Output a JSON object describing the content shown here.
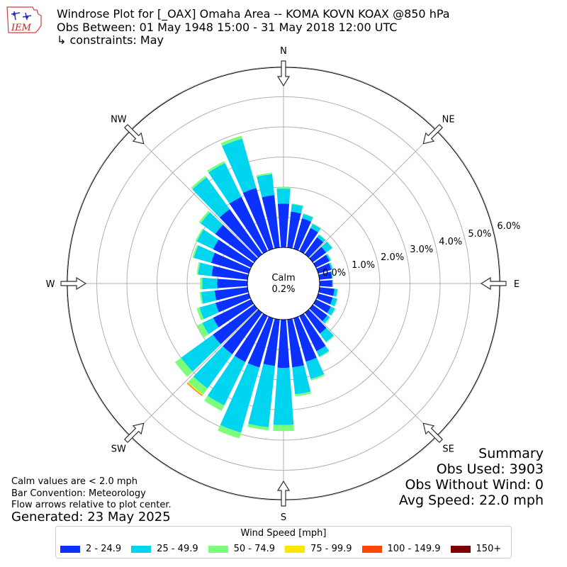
{
  "header": {
    "logo_text": "IEM",
    "title_line1": "Windrose Plot for [_OAX] Omaha Area -- KOMA KOVN KOAX @850 hPa",
    "title_line2": "Obs Between: 01 May 1948 15:00 - 31 May 2018 12:00 UTC",
    "title_line3": "↳ constraints: May"
  },
  "notes": {
    "calm_note": "Calm values are < 2.0 mph",
    "bar_convention": "Bar Convention: Meteorology",
    "flow_note": "Flow arrows relative to plot center.",
    "generated": "Generated: 23 May 2025"
  },
  "summary": {
    "title": "Summary",
    "obs_used": "Obs Used: 3903",
    "obs_without_wind": "Obs Without Wind: 0",
    "avg_speed": "Avg Speed: 22.0 mph"
  },
  "legend": {
    "title": "Wind Speed [mph]",
    "items": [
      {
        "label": "2 - 24.9",
        "color": "#0a31ff"
      },
      {
        "label": "25 - 49.9",
        "color": "#00d5f0"
      },
      {
        "label": "50 - 74.9",
        "color": "#7cff7a"
      },
      {
        "label": "75 - 99.9",
        "color": "#ffe500"
      },
      {
        "label": "100 - 149.9",
        "color": "#ff4600"
      },
      {
        "label": "150+",
        "color": "#7f0000"
      }
    ]
  },
  "chart_data": {
    "type": "windrose",
    "units": "%",
    "calm_label": "Calm",
    "calm_value": "0.2%",
    "radial_ticks": [
      "0.0%",
      "1.0%",
      "2.0%",
      "3.0%",
      "4.0%",
      "5.0%",
      "6.0%"
    ],
    "rmax": 6.0,
    "compass": [
      {
        "label": "N",
        "deg": 0
      },
      {
        "label": "NE",
        "deg": 45
      },
      {
        "label": "E",
        "deg": 90
      },
      {
        "label": "SE",
        "deg": 135
      },
      {
        "label": "S",
        "deg": 180
      },
      {
        "label": "SW",
        "deg": 225
      },
      {
        "label": "W",
        "deg": 270
      },
      {
        "label": "NW",
        "deg": 315
      }
    ],
    "direction_bin_width_deg": 10,
    "speed_bins": [
      "2 - 24.9",
      "25 - 49.9",
      "50 - 74.9",
      "75 - 99.9",
      "100 - 149.9",
      "150+"
    ],
    "bin_colors": [
      "#0a31ff",
      "#00d5f0",
      "#7cff7a",
      "#ffe500",
      "#ff4600",
      "#7f0000"
    ],
    "directions": [
      {
        "deg": 0,
        "values": [
          1.45,
          0.5,
          0.05,
          0,
          0,
          0
        ]
      },
      {
        "deg": 10,
        "values": [
          1.2,
          0.25,
          0.02,
          0,
          0,
          0
        ]
      },
      {
        "deg": 20,
        "values": [
          1.05,
          0.15,
          0.02,
          0,
          0,
          0
        ]
      },
      {
        "deg": 30,
        "values": [
          0.85,
          0.15,
          0.02,
          0,
          0,
          0
        ]
      },
      {
        "deg": 40,
        "values": [
          0.7,
          0.1,
          0.02,
          0,
          0,
          0
        ]
      },
      {
        "deg": 50,
        "values": [
          0.55,
          0.25,
          0.02,
          0,
          0,
          0
        ]
      },
      {
        "deg": 60,
        "values": [
          0.5,
          0.05,
          0.02,
          0,
          0,
          0
        ]
      },
      {
        "deg": 70,
        "values": [
          0.45,
          0.05,
          0.02,
          0,
          0,
          0
        ]
      },
      {
        "deg": 80,
        "values": [
          0.42,
          0.02,
          0.01,
          0,
          0,
          0
        ]
      },
      {
        "deg": 90,
        "values": [
          0.42,
          0.02,
          0.01,
          0,
          0,
          0
        ]
      },
      {
        "deg": 100,
        "values": [
          0.5,
          0.1,
          0.02,
          0,
          0,
          0
        ]
      },
      {
        "deg": 110,
        "values": [
          0.5,
          0.15,
          0.02,
          0,
          0,
          0
        ]
      },
      {
        "deg": 120,
        "values": [
          0.55,
          0.15,
          0.02,
          0,
          0,
          0
        ]
      },
      {
        "deg": 130,
        "values": [
          0.6,
          0.1,
          0.03,
          0,
          0,
          0
        ]
      },
      {
        "deg": 140,
        "values": [
          0.85,
          0.35,
          0.03,
          0,
          0,
          0
        ]
      },
      {
        "deg": 150,
        "values": [
          1.3,
          0.2,
          0.03,
          0,
          0,
          0
        ]
      },
      {
        "deg": 160,
        "values": [
          1.5,
          0.6,
          0.05,
          0,
          0,
          0
        ]
      },
      {
        "deg": 170,
        "values": [
          1.6,
          0.9,
          0.07,
          0,
          0,
          0
        ]
      },
      {
        "deg": 180,
        "values": [
          1.6,
          1.9,
          0.2,
          0,
          0,
          0
        ]
      },
      {
        "deg": 190,
        "values": [
          1.55,
          2.05,
          0.1,
          0,
          0,
          0
        ]
      },
      {
        "deg": 200,
        "values": [
          1.7,
          2.25,
          0.2,
          0,
          0,
          0
        ]
      },
      {
        "deg": 210,
        "values": [
          1.7,
          1.6,
          0.2,
          0,
          0,
          0
        ]
      },
      {
        "deg": 220,
        "values": [
          1.7,
          1.4,
          0.25,
          0.04,
          0.02,
          0
        ]
      },
      {
        "deg": 230,
        "values": [
          1.7,
          1.3,
          0.25,
          0,
          0,
          0
        ]
      },
      {
        "deg": 240,
        "values": [
          1.4,
          0.4,
          0.2,
          0,
          0,
          0
        ]
      },
      {
        "deg": 250,
        "values": [
          1.15,
          0.55,
          0.1,
          0,
          0,
          0
        ]
      },
      {
        "deg": 260,
        "values": [
          1.1,
          0.45,
          0.05,
          0,
          0,
          0
        ]
      },
      {
        "deg": 270,
        "values": [
          1.0,
          0.5,
          0.07,
          0,
          0,
          0
        ]
      },
      {
        "deg": 280,
        "values": [
          1.2,
          0.45,
          0.05,
          0,
          0,
          0
        ]
      },
      {
        "deg": 290,
        "values": [
          1.3,
          0.6,
          0.05,
          0,
          0,
          0
        ]
      },
      {
        "deg": 300,
        "values": [
          1.4,
          0.6,
          0.05,
          0,
          0,
          0
        ]
      },
      {
        "deg": 310,
        "values": [
          1.6,
          0.6,
          0.07,
          0,
          0,
          0
        ]
      },
      {
        "deg": 320,
        "values": [
          1.85,
          1.3,
          0.07,
          0,
          0,
          0
        ]
      },
      {
        "deg": 330,
        "values": [
          2.0,
          1.25,
          0.07,
          0,
          0,
          0
        ]
      },
      {
        "deg": 340,
        "values": [
          2.1,
          1.7,
          0.1,
          0,
          0,
          0
        ]
      },
      {
        "deg": 350,
        "values": [
          1.75,
          0.7,
          0.05,
          0,
          0,
          0
        ]
      }
    ]
  }
}
